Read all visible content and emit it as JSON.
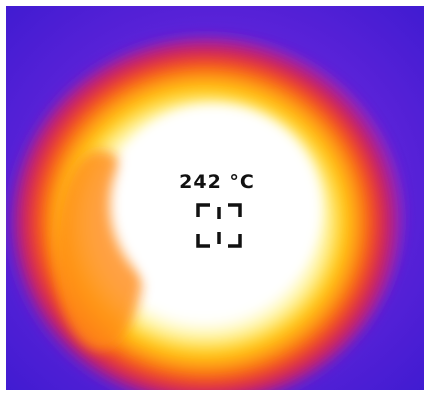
{
  "reading": {
    "temperature": "242 °C"
  }
}
